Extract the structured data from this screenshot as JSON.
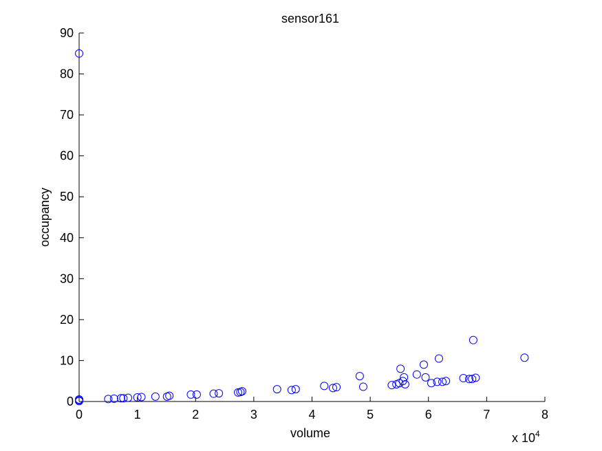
{
  "chart_data": {
    "type": "scatter",
    "title": "sensor161",
    "xlabel": "volume",
    "ylabel": "occupancy",
    "x_multiplier_base": "x 10",
    "x_multiplier_exp": "4",
    "xlim": [
      0,
      8
    ],
    "ylim": [
      0,
      90
    ],
    "x_ticks": [
      0,
      1,
      2,
      3,
      4,
      5,
      6,
      7,
      8
    ],
    "y_ticks": [
      0,
      10,
      20,
      30,
      40,
      50,
      60,
      70,
      80,
      90
    ],
    "grid": false,
    "marker_color": "#0000ff",
    "marker": "open-circle",
    "series": [
      {
        "x": [
          0.0,
          0.0,
          0.0,
          0.0,
          0.5,
          0.6,
          0.72,
          0.76,
          0.84,
          1.0,
          1.07,
          1.31,
          1.51,
          1.55,
          1.92,
          2.02,
          2.31,
          2.4,
          2.73,
          2.77,
          2.8,
          3.4,
          3.65,
          3.72,
          4.21,
          4.36,
          4.42,
          4.82,
          4.88,
          5.37,
          5.45,
          5.52,
          5.5,
          5.56,
          5.6,
          5.58,
          5.8,
          5.92,
          5.95,
          6.05,
          6.15,
          6.18,
          6.24,
          6.3,
          6.6,
          6.7,
          6.75,
          6.77,
          6.81,
          7.65
        ],
        "y": [
          85.0,
          0.5,
          0.3,
          0.1,
          0.6,
          0.7,
          0.8,
          0.8,
          0.9,
          1.0,
          1.1,
          1.2,
          1.2,
          1.4,
          1.7,
          1.7,
          1.9,
          2.0,
          2.2,
          2.3,
          2.5,
          3.0,
          2.8,
          3.0,
          3.8,
          3.3,
          3.5,
          6.2,
          3.6,
          4.0,
          4.2,
          8.0,
          4.5,
          5.0,
          4.2,
          5.9,
          6.6,
          9.0,
          5.9,
          4.5,
          4.8,
          10.5,
          4.8,
          5.0,
          5.7,
          5.5,
          5.5,
          15.0,
          5.8,
          10.7
        ]
      }
    ]
  }
}
